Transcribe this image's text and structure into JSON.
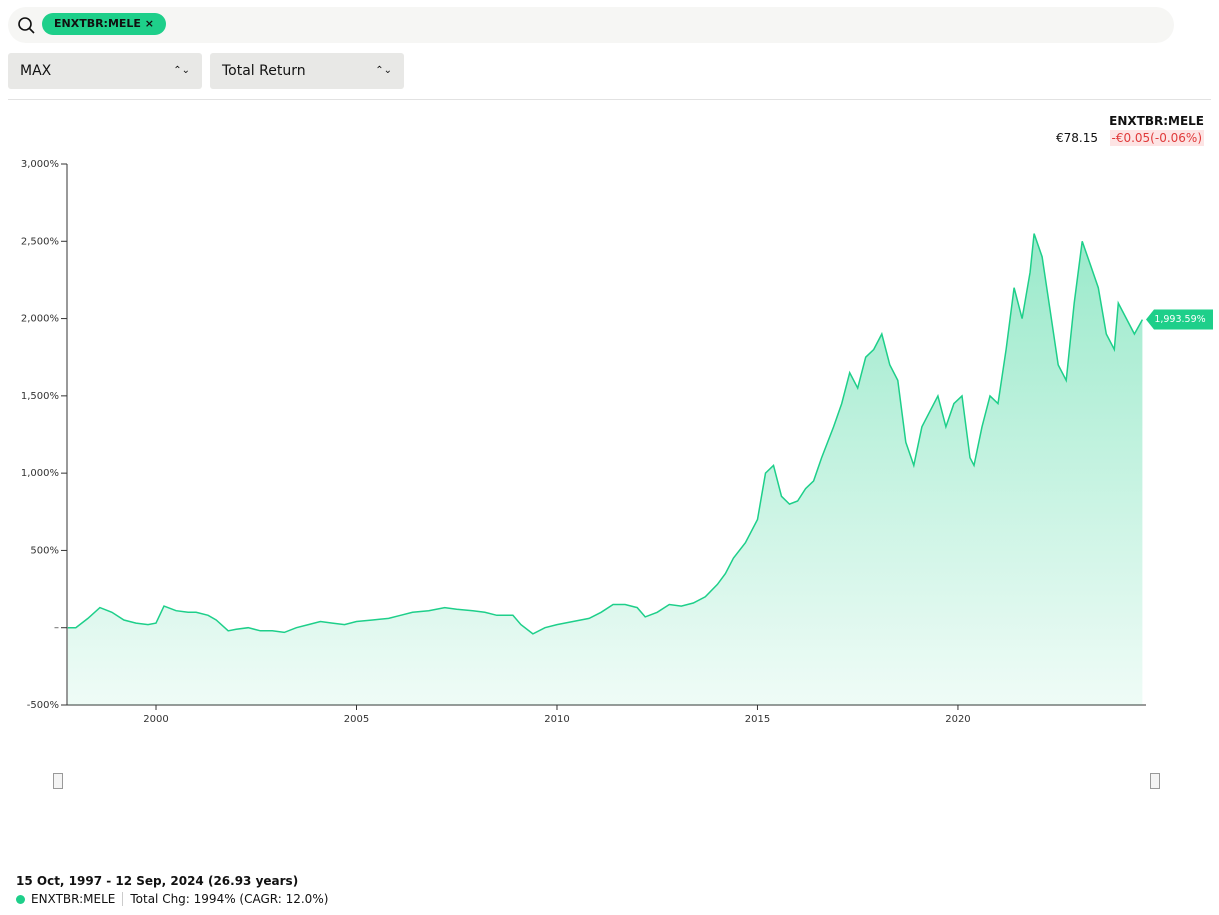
{
  "search": {
    "tag": "ENXTBR:MELE"
  },
  "controls": {
    "range": "MAX",
    "mode": "Total Return"
  },
  "quote": {
    "symbol": "ENXTBR:MELE",
    "price": "€78.15",
    "change": "-€0.05(-0.06%)"
  },
  "footer": {
    "period": "15 Oct, 1997 - 12 Sep, 2024 (26.93 years)",
    "stats": "Total Chg: 1994% (CAGR: 12.0%)"
  },
  "chart_data": {
    "type": "line",
    "x": [
      1997.8,
      1998.0,
      1998.3,
      1998.6,
      1998.9,
      1999.2,
      1999.5,
      1999.8,
      2000.0,
      2000.2,
      2000.5,
      2000.8,
      2001.0,
      2001.3,
      2001.5,
      2001.8,
      2002.0,
      2002.3,
      2002.6,
      2002.9,
      2003.2,
      2003.5,
      2003.8,
      2004.1,
      2004.4,
      2004.7,
      2005.0,
      2005.4,
      2005.8,
      2006.1,
      2006.4,
      2006.8,
      2007.2,
      2007.5,
      2007.9,
      2008.2,
      2008.5,
      2008.9,
      2009.1,
      2009.4,
      2009.7,
      2010.0,
      2010.4,
      2010.8,
      2011.1,
      2011.4,
      2011.7,
      2012.0,
      2012.2,
      2012.5,
      2012.8,
      2013.1,
      2013.4,
      2013.7,
      2014.0,
      2014.2,
      2014.4,
      2014.7,
      2015.0,
      2015.2,
      2015.4,
      2015.6,
      2015.8,
      2016.0,
      2016.2,
      2016.4,
      2016.6,
      2016.9,
      2017.1,
      2017.3,
      2017.5,
      2017.7,
      2017.9,
      2018.1,
      2018.3,
      2018.5,
      2018.7,
      2018.9,
      2019.1,
      2019.3,
      2019.5,
      2019.7,
      2019.9,
      2020.1,
      2020.3,
      2020.4,
      2020.6,
      2020.8,
      2021.0,
      2021.2,
      2021.4,
      2021.6,
      2021.8,
      2021.9,
      2022.1,
      2022.3,
      2022.5,
      2022.7,
      2022.9,
      2023.1,
      2023.3,
      2023.5,
      2023.7,
      2023.9,
      2024.0,
      2024.2,
      2024.4,
      2024.6
    ],
    "series": [
      {
        "name": "ENXTBR:MELE",
        "color": "#1ecf8a",
        "values": [
          0,
          0,
          60,
          130,
          100,
          50,
          30,
          20,
          30,
          140,
          110,
          100,
          100,
          80,
          50,
          -20,
          -10,
          0,
          -20,
          -20,
          -30,
          0,
          20,
          40,
          30,
          20,
          40,
          50,
          60,
          80,
          100,
          110,
          130,
          120,
          110,
          100,
          80,
          80,
          20,
          -40,
          0,
          20,
          40,
          60,
          100,
          150,
          150,
          130,
          70,
          100,
          150,
          140,
          160,
          200,
          280,
          350,
          450,
          550,
          700,
          1000,
          1050,
          850,
          800,
          820,
          900,
          950,
          1100,
          1300,
          1450,
          1650,
          1550,
          1750,
          1800,
          1900,
          1700,
          1600,
          1200,
          1050,
          1300,
          1400,
          1500,
          1300,
          1450,
          1500,
          1100,
          1050,
          1300,
          1500,
          1450,
          1800,
          2200,
          2000,
          2300,
          2550,
          2400,
          2050,
          1700,
          1600,
          2100,
          2500,
          2350,
          2200,
          1900,
          1800,
          2100,
          2000,
          1900,
          1993.59
        ]
      }
    ],
    "end_label": "1,993.59%",
    "xlim": [
      1997.78,
      2024.69
    ],
    "xticks": [
      2000,
      2005,
      2010,
      2015,
      2020
    ],
    "ylim": [
      -500,
      3000
    ],
    "yticks": [
      {
        "value": -500,
        "label": "-500%"
      },
      {
        "value": 0,
        "label": "–"
      },
      {
        "value": 500,
        "label": "500%"
      },
      {
        "value": 1000,
        "label": "1,000%"
      },
      {
        "value": 1500,
        "label": "1,500%"
      },
      {
        "value": 2000,
        "label": "2,000%"
      },
      {
        "value": 2500,
        "label": "2,500%"
      },
      {
        "value": 3000,
        "label": "3,000%"
      }
    ]
  }
}
